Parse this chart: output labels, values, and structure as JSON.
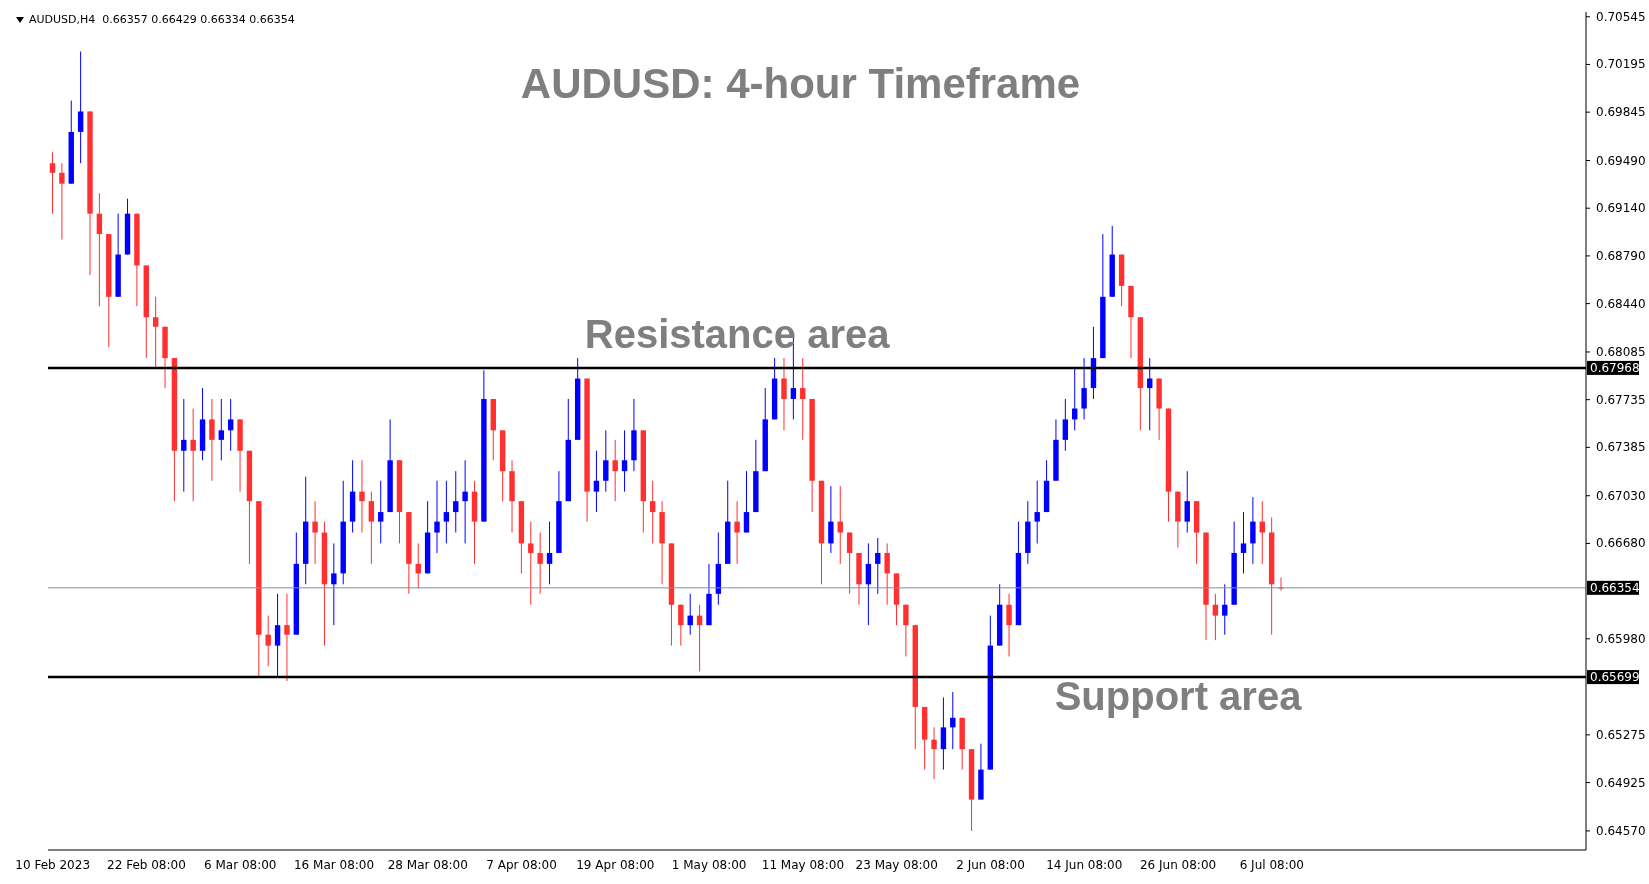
{
  "chart_data": {
    "type": "candlestick",
    "title": "AUDUSD: 4-hour Timeframe",
    "annotations": [
      "AUDUSD,H4  0.66357 0.66429 0.66334 0.66354",
      {
        "text": "Resistance area",
        "x": "1 May 08:00",
        "y": 0.67968
      },
      {
        "text": "Support area",
        "x": "26 Jun 08:00",
        "y": 0.65699
      }
    ],
    "categories": [
      "10 Feb 2023",
      null,
      null,
      null,
      null,
      null,
      null,
      null,
      null,
      null,
      "22 Feb 08:00",
      null,
      null,
      null,
      null,
      null,
      null,
      null,
      null,
      null,
      "6 Mar 08:00",
      null,
      null,
      null,
      null,
      null,
      null,
      null,
      null,
      null,
      "16 Mar 08:00",
      null,
      null,
      null,
      null,
      null,
      null,
      null,
      null,
      null,
      "28 Mar 08:00",
      null,
      null,
      null,
      null,
      null,
      null,
      null,
      null,
      null,
      "7 Apr 08:00",
      null,
      null,
      null,
      null,
      null,
      null,
      null,
      null,
      null,
      "19 Apr 08:00",
      null,
      null,
      null,
      null,
      null,
      null,
      null,
      null,
      null,
      "1 May 08:00",
      null,
      null,
      null,
      null,
      null,
      null,
      null,
      null,
      null,
      "11 May 08:00",
      null,
      null,
      null,
      null,
      null,
      null,
      null,
      null,
      null,
      "23 May 08:00",
      null,
      null,
      null,
      null,
      null,
      null,
      null,
      null,
      null,
      "2 Jun 08:00",
      null,
      null,
      null,
      null,
      null,
      null,
      null,
      null,
      null,
      "14 Jun 08:00",
      null,
      null,
      null,
      null,
      null,
      null,
      null,
      null,
      null,
      "26 Jun 08:00",
      null,
      null,
      null,
      null,
      null,
      null,
      null,
      null,
      null,
      "6 Jul 08:00",
      null,
      null,
      null,
      null,
      null,
      null,
      null,
      null,
      null,
      null,
      null,
      null,
      null,
      null,
      null,
      null,
      null,
      null,
      null,
      null,
      null,
      null,
      null,
      null,
      null,
      null,
      null,
      null,
      null,
      null,
      null,
      null,
      null
    ],
    "ohlc": [
      [
        0.6947,
        0.6955,
        0.691,
        0.694
      ],
      [
        0.694,
        0.6947,
        0.6891,
        0.6932
      ],
      [
        0.6932,
        0.6993,
        0.6932,
        0.697
      ],
      [
        0.697,
        0.7029,
        0.6947,
        0.6985
      ],
      [
        0.6985,
        0.6985,
        0.6865,
        0.691
      ],
      [
        0.691,
        0.6925,
        0.6842,
        0.6895
      ],
      [
        0.6895,
        0.6895,
        0.6812,
        0.6849
      ],
      [
        0.6849,
        0.691,
        0.6849,
        0.688
      ],
      [
        0.688,
        0.6921,
        0.688,
        0.691
      ],
      [
        0.691,
        0.691,
        0.6842,
        0.6872
      ],
      [
        0.6872,
        0.6872,
        0.6804,
        0.6834
      ],
      [
        0.6834,
        0.6849,
        0.6797,
        0.6827
      ],
      [
        0.6827,
        0.6827,
        0.6782,
        0.6804
      ],
      [
        0.6804,
        0.6804,
        0.6699,
        0.6736
      ],
      [
        0.6736,
        0.6774,
        0.6706,
        0.6744
      ],
      [
        0.6744,
        0.6767,
        0.6699,
        0.6736
      ],
      [
        0.6736,
        0.6782,
        0.6729,
        0.6759
      ],
      [
        0.6759,
        0.6774,
        0.6714,
        0.6744
      ],
      [
        0.6744,
        0.6774,
        0.6729,
        0.6751
      ],
      [
        0.6751,
        0.6774,
        0.6736,
        0.6759
      ],
      [
        0.6759,
        0.6759,
        0.6706,
        0.6736
      ],
      [
        0.6736,
        0.6736,
        0.6653,
        0.6699
      ],
      [
        0.6699,
        0.6699,
        0.657,
        0.6601
      ],
      [
        0.6601,
        0.6615,
        0.6578,
        0.6593
      ],
      [
        0.6593,
        0.6631,
        0.657,
        0.6608
      ],
      [
        0.6608,
        0.6631,
        0.6567,
        0.6601
      ],
      [
        0.6601,
        0.6676,
        0.6601,
        0.6653
      ],
      [
        0.6653,
        0.6717,
        0.6638,
        0.6684
      ],
      [
        0.6684,
        0.6699,
        0.6653,
        0.6676
      ],
      [
        0.6676,
        0.6684,
        0.6593,
        0.6638
      ],
      [
        0.6638,
        0.6668,
        0.6608,
        0.6646
      ],
      [
        0.6646,
        0.6714,
        0.6638,
        0.6684
      ],
      [
        0.6684,
        0.6729,
        0.6676,
        0.6706
      ],
      [
        0.6706,
        0.6729,
        0.6676,
        0.6699
      ],
      [
        0.6699,
        0.6706,
        0.6653,
        0.6684
      ],
      [
        0.6684,
        0.6714,
        0.6668,
        0.6691
      ],
      [
        0.6691,
        0.6759,
        0.6691,
        0.6729
      ],
      [
        0.6729,
        0.6729,
        0.6668,
        0.6691
      ],
      [
        0.6691,
        0.6691,
        0.6631,
        0.6653
      ],
      [
        0.6653,
        0.6668,
        0.6635,
        0.6646
      ],
      [
        0.6646,
        0.6699,
        0.6646,
        0.6676
      ],
      [
        0.6676,
        0.6714,
        0.6661,
        0.6684
      ],
      [
        0.6684,
        0.6714,
        0.6668,
        0.6691
      ],
      [
        0.6691,
        0.6721,
        0.6676,
        0.6699
      ],
      [
        0.6699,
        0.6729,
        0.6668,
        0.6706
      ],
      [
        0.6706,
        0.6714,
        0.6653,
        0.6684
      ],
      [
        0.6684,
        0.6795,
        0.6684,
        0.6774
      ],
      [
        0.6774,
        0.6774,
        0.6729,
        0.6751
      ],
      [
        0.6751,
        0.6751,
        0.6699,
        0.6721
      ],
      [
        0.6721,
        0.6729,
        0.6676,
        0.6699
      ],
      [
        0.6699,
        0.6699,
        0.6646,
        0.6668
      ],
      [
        0.6668,
        0.6684,
        0.6623,
        0.6661
      ],
      [
        0.6661,
        0.6676,
        0.6631,
        0.6653
      ],
      [
        0.6653,
        0.6684,
        0.6638,
        0.6661
      ],
      [
        0.6661,
        0.6721,
        0.6661,
        0.6699
      ],
      [
        0.6699,
        0.6774,
        0.6699,
        0.6744
      ],
      [
        0.6744,
        0.6804,
        0.6744,
        0.6789
      ],
      [
        0.6789,
        0.6789,
        0.6684,
        0.6706
      ],
      [
        0.6706,
        0.6736,
        0.6691,
        0.6714
      ],
      [
        0.6714,
        0.6751,
        0.6706,
        0.6729
      ],
      [
        0.6729,
        0.6744,
        0.6699,
        0.6721
      ],
      [
        0.6721,
        0.6751,
        0.6706,
        0.6729
      ],
      [
        0.6729,
        0.6774,
        0.6721,
        0.6751
      ],
      [
        0.6751,
        0.6751,
        0.6676,
        0.6699
      ],
      [
        0.6699,
        0.6714,
        0.6668,
        0.6691
      ],
      [
        0.6691,
        0.6699,
        0.6638,
        0.6668
      ],
      [
        0.6668,
        0.6668,
        0.6593,
        0.6623
      ],
      [
        0.6623,
        0.6623,
        0.6593,
        0.6608
      ],
      [
        0.6608,
        0.6631,
        0.6601,
        0.6615
      ],
      [
        0.6615,
        0.6623,
        0.6574,
        0.6608
      ],
      [
        0.6608,
        0.6653,
        0.6608,
        0.6631
      ],
      [
        0.6631,
        0.6676,
        0.6623,
        0.6653
      ],
      [
        0.6653,
        0.6714,
        0.6653,
        0.6684
      ],
      [
        0.6684,
        0.6699,
        0.6653,
        0.6676
      ],
      [
        0.6676,
        0.6721,
        0.6676,
        0.6691
      ],
      [
        0.6691,
        0.6744,
        0.6691,
        0.6721
      ],
      [
        0.6721,
        0.6782,
        0.6721,
        0.6759
      ],
      [
        0.6759,
        0.6804,
        0.6759,
        0.6789
      ],
      [
        0.6789,
        0.6804,
        0.6751,
        0.6774
      ],
      [
        0.6774,
        0.6819,
        0.6759,
        0.6782
      ],
      [
        0.6782,
        0.6804,
        0.6744,
        0.6774
      ],
      [
        0.6774,
        0.6774,
        0.6691,
        0.6714
      ],
      [
        0.6714,
        0.6714,
        0.6638,
        0.6668
      ],
      [
        0.6668,
        0.671,
        0.6661,
        0.6684
      ],
      [
        0.6684,
        0.671,
        0.6653,
        0.6676
      ],
      [
        0.6676,
        0.6676,
        0.6631,
        0.6661
      ],
      [
        0.6661,
        0.6661,
        0.6623,
        0.6638
      ],
      [
        0.6638,
        0.6668,
        0.6608,
        0.6653
      ],
      [
        0.6653,
        0.6672,
        0.6631,
        0.6661
      ],
      [
        0.6661,
        0.6668,
        0.6623,
        0.6646
      ],
      [
        0.6646,
        0.6646,
        0.6608,
        0.6623
      ],
      [
        0.6623,
        0.6623,
        0.6585,
        0.6608
      ],
      [
        0.6608,
        0.6608,
        0.6517,
        0.6548
      ],
      [
        0.6548,
        0.6548,
        0.6502,
        0.6524
      ],
      [
        0.6524,
        0.6533,
        0.6495,
        0.6517
      ],
      [
        0.6517,
        0.6555,
        0.6502,
        0.6533
      ],
      [
        0.6533,
        0.6559,
        0.6517,
        0.654
      ],
      [
        0.654,
        0.654,
        0.6502,
        0.6517
      ],
      [
        0.6517,
        0.6517,
        0.6457,
        0.648
      ],
      [
        0.648,
        0.6521,
        0.648,
        0.6502
      ],
      [
        0.6502,
        0.6615,
        0.6502,
        0.6593
      ],
      [
        0.6593,
        0.6638,
        0.6593,
        0.6623
      ],
      [
        0.6623,
        0.6631,
        0.6585,
        0.6608
      ],
      [
        0.6608,
        0.6684,
        0.6608,
        0.6661
      ],
      [
        0.6661,
        0.6699,
        0.6653,
        0.6684
      ],
      [
        0.6684,
        0.6714,
        0.6668,
        0.6691
      ],
      [
        0.6691,
        0.6729,
        0.6691,
        0.6714
      ],
      [
        0.6714,
        0.6759,
        0.6714,
        0.6744
      ],
      [
        0.6744,
        0.6774,
        0.6736,
        0.6759
      ],
      [
        0.6759,
        0.6797,
        0.6751,
        0.6767
      ],
      [
        0.6767,
        0.6804,
        0.6759,
        0.6782
      ],
      [
        0.6782,
        0.6827,
        0.6774,
        0.6804
      ],
      [
        0.6804,
        0.6895,
        0.6804,
        0.6849
      ],
      [
        0.6849,
        0.6901,
        0.6849,
        0.688
      ],
      [
        0.688,
        0.688,
        0.6842,
        0.6857
      ],
      [
        0.6857,
        0.6857,
        0.6804,
        0.6834
      ],
      [
        0.6834,
        0.6834,
        0.6751,
        0.6782
      ],
      [
        0.6782,
        0.6804,
        0.6751,
        0.6789
      ],
      [
        0.6789,
        0.6789,
        0.6744,
        0.6767
      ],
      [
        0.6767,
        0.6767,
        0.6684,
        0.6706
      ],
      [
        0.6706,
        0.6706,
        0.6665,
        0.6684
      ],
      [
        0.6684,
        0.6721,
        0.6676,
        0.6699
      ],
      [
        0.6699,
        0.6699,
        0.6653,
        0.6676
      ],
      [
        0.6676,
        0.6676,
        0.6597,
        0.6623
      ],
      [
        0.6623,
        0.6631,
        0.6597,
        0.6615
      ],
      [
        0.6615,
        0.6638,
        0.6601,
        0.6623
      ],
      [
        0.6623,
        0.6684,
        0.6623,
        0.6661
      ],
      [
        0.6661,
        0.6691,
        0.6646,
        0.6668
      ],
      [
        0.6668,
        0.6702,
        0.6653,
        0.6684
      ],
      [
        0.6684,
        0.6699,
        0.6653,
        0.6676
      ],
      [
        0.6676,
        0.6687,
        0.6601,
        0.6638
      ],
      [
        0.66357,
        0.66429,
        0.66334,
        0.66354
      ],
      null,
      null,
      null,
      null,
      null,
      null,
      null,
      null,
      null,
      null,
      null,
      null,
      null,
      null,
      null,
      null,
      null,
      null,
      null,
      null,
      null,
      null,
      null,
      null,
      null,
      null,
      null,
      null,
      null,
      null,
      null,
      null
    ],
    "colors": [
      "#ff3030",
      "#ff3030",
      "#0000ff",
      "#0000ff",
      "#ff3030",
      "#ff3030",
      "#ff3030",
      "#0000ff",
      "#0000ff",
      "#ff3030",
      "#ff3030",
      "#ff3030",
      "#ff3030",
      "#ff3030",
      "#0000ff",
      "#ff3030",
      "#0000ff",
      "#ff3030",
      "#0000ff",
      "#0000ff",
      "#ff3030",
      "#ff3030",
      "#ff3030",
      "#ff3030",
      "#0000ff",
      "#ff3030",
      "#0000ff",
      "#0000ff",
      "#ff3030",
      "#ff3030",
      "#0000ff",
      "#0000ff",
      "#0000ff",
      "#ff3030",
      "#ff3030",
      "#0000ff",
      "#0000ff",
      "#ff3030",
      "#ff3030",
      "#ff3030",
      "#0000ff",
      "#0000ff",
      "#0000ff",
      "#0000ff",
      "#0000ff",
      "#ff3030",
      "#0000ff",
      "#ff3030",
      "#ff3030",
      "#ff3030",
      "#ff3030",
      "#ff3030",
      "#ff3030",
      "#0000ff",
      "#0000ff",
      "#0000ff",
      "#0000ff",
      "#ff3030",
      "#0000ff",
      "#0000ff",
      "#ff3030",
      "#0000ff",
      "#0000ff",
      "#ff3030",
      "#ff3030",
      "#ff3030",
      "#ff3030",
      "#ff3030",
      "#0000ff",
      "#ff3030",
      "#0000ff",
      "#0000ff",
      "#0000ff",
      "#ff3030",
      "#0000ff",
      "#0000ff",
      "#0000ff",
      "#0000ff",
      "#ff3030",
      "#0000ff",
      "#ff3030",
      "#ff3030",
      "#ff3030",
      "#0000ff",
      "#ff3030",
      "#ff3030",
      "#ff3030",
      "#0000ff",
      "#0000ff",
      "#ff3030",
      "#ff3030",
      "#ff3030",
      "#ff3030",
      "#ff3030",
      "#ff3030",
      "#0000ff",
      "#0000ff",
      "#ff3030",
      "#ff3030",
      "#0000ff",
      "#0000ff",
      "#0000ff",
      "#ff3030",
      "#0000ff",
      "#0000ff",
      "#0000ff",
      "#0000ff",
      "#0000ff",
      "#0000ff",
      "#0000ff",
      "#0000ff",
      "#0000ff",
      "#0000ff",
      "#0000ff",
      "#ff3030",
      "#ff3030",
      "#ff3030",
      "#0000ff",
      "#ff3030",
      "#ff3030",
      "#ff3030",
      "#0000ff",
      "#ff3030",
      "#ff3030",
      "#ff3030",
      "#0000ff",
      "#0000ff",
      "#0000ff",
      "#0000ff",
      "#ff3030",
      "#ff3030",
      "#ff3030",
      null,
      null,
      null,
      null,
      null,
      null,
      null,
      null,
      null,
      null,
      null,
      null,
      null,
      null,
      null,
      null,
      null,
      null,
      null,
      null,
      null,
      null,
      null,
      null,
      null,
      null,
      null,
      null,
      null,
      null,
      null,
      null
    ],
    "ylim": [
      0.6443,
      0.7058
    ],
    "yticks": [
      0.70545,
      0.70195,
      0.69845,
      {
        "value": 0.6949,
        "label": "0.69490"
      },
      {
        "value": 0.6914,
        "label": "0.69140"
      },
      {
        "value": 0.6879,
        "label": "0.68790"
      },
      {
        "value": 0.6844,
        "label": "0.68440"
      },
      0.68085,
      0.67735,
      0.67385,
      {
        "value": 0.6703,
        "label": "0.67030"
      },
      {
        "value": 0.6668,
        "label": "0.66680"
      },
      {
        "value": 0.6598,
        "label": "0.65980"
      },
      0.65275,
      0.64925,
      {
        "value": 0.6457,
        "label": "0.64570"
      }
    ],
    "ref_lines": [
      {
        "axis": "y",
        "value": 0.67968,
        "label": "0.67968",
        "color": "#000000"
      },
      {
        "axis": "y",
        "value": 0.65699,
        "label": "0.65699",
        "color": "#000000"
      },
      {
        "axis": "y",
        "value": 0.66354,
        "label": "0.66354",
        "color": "#7d90a8"
      }
    ]
  }
}
